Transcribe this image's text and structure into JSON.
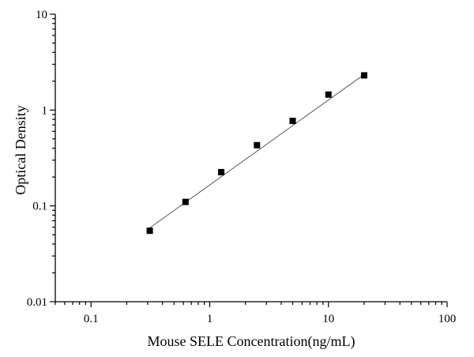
{
  "chart_data": {
    "type": "scatter",
    "title": "",
    "xlabel": "Mouse SELE Concentration(ng/mL)",
    "ylabel": "Optical Density",
    "x_scale": "log",
    "y_scale": "log",
    "xlim": [
      0.05,
      100
    ],
    "ylim": [
      0.01,
      10
    ],
    "x_tick_labels": [
      "0.1",
      "1",
      "10",
      "100"
    ],
    "y_tick_labels": [
      "0.01",
      "0.1",
      "1",
      "10"
    ],
    "grid": false,
    "legend": "none",
    "series": [
      {
        "x": [
          0.3125,
          0.625,
          1.25,
          2.5,
          5,
          10,
          20
        ],
        "y": [
          0.055,
          0.11,
          0.225,
          0.43,
          0.77,
          1.45,
          2.3
        ]
      }
    ],
    "fit_line": {
      "x": [
        0.3125,
        20
      ],
      "y": [
        0.059,
        2.35
      ]
    },
    "colors": {
      "marker": "#000000",
      "fit_line": "#555555",
      "axis": "#000000"
    }
  }
}
